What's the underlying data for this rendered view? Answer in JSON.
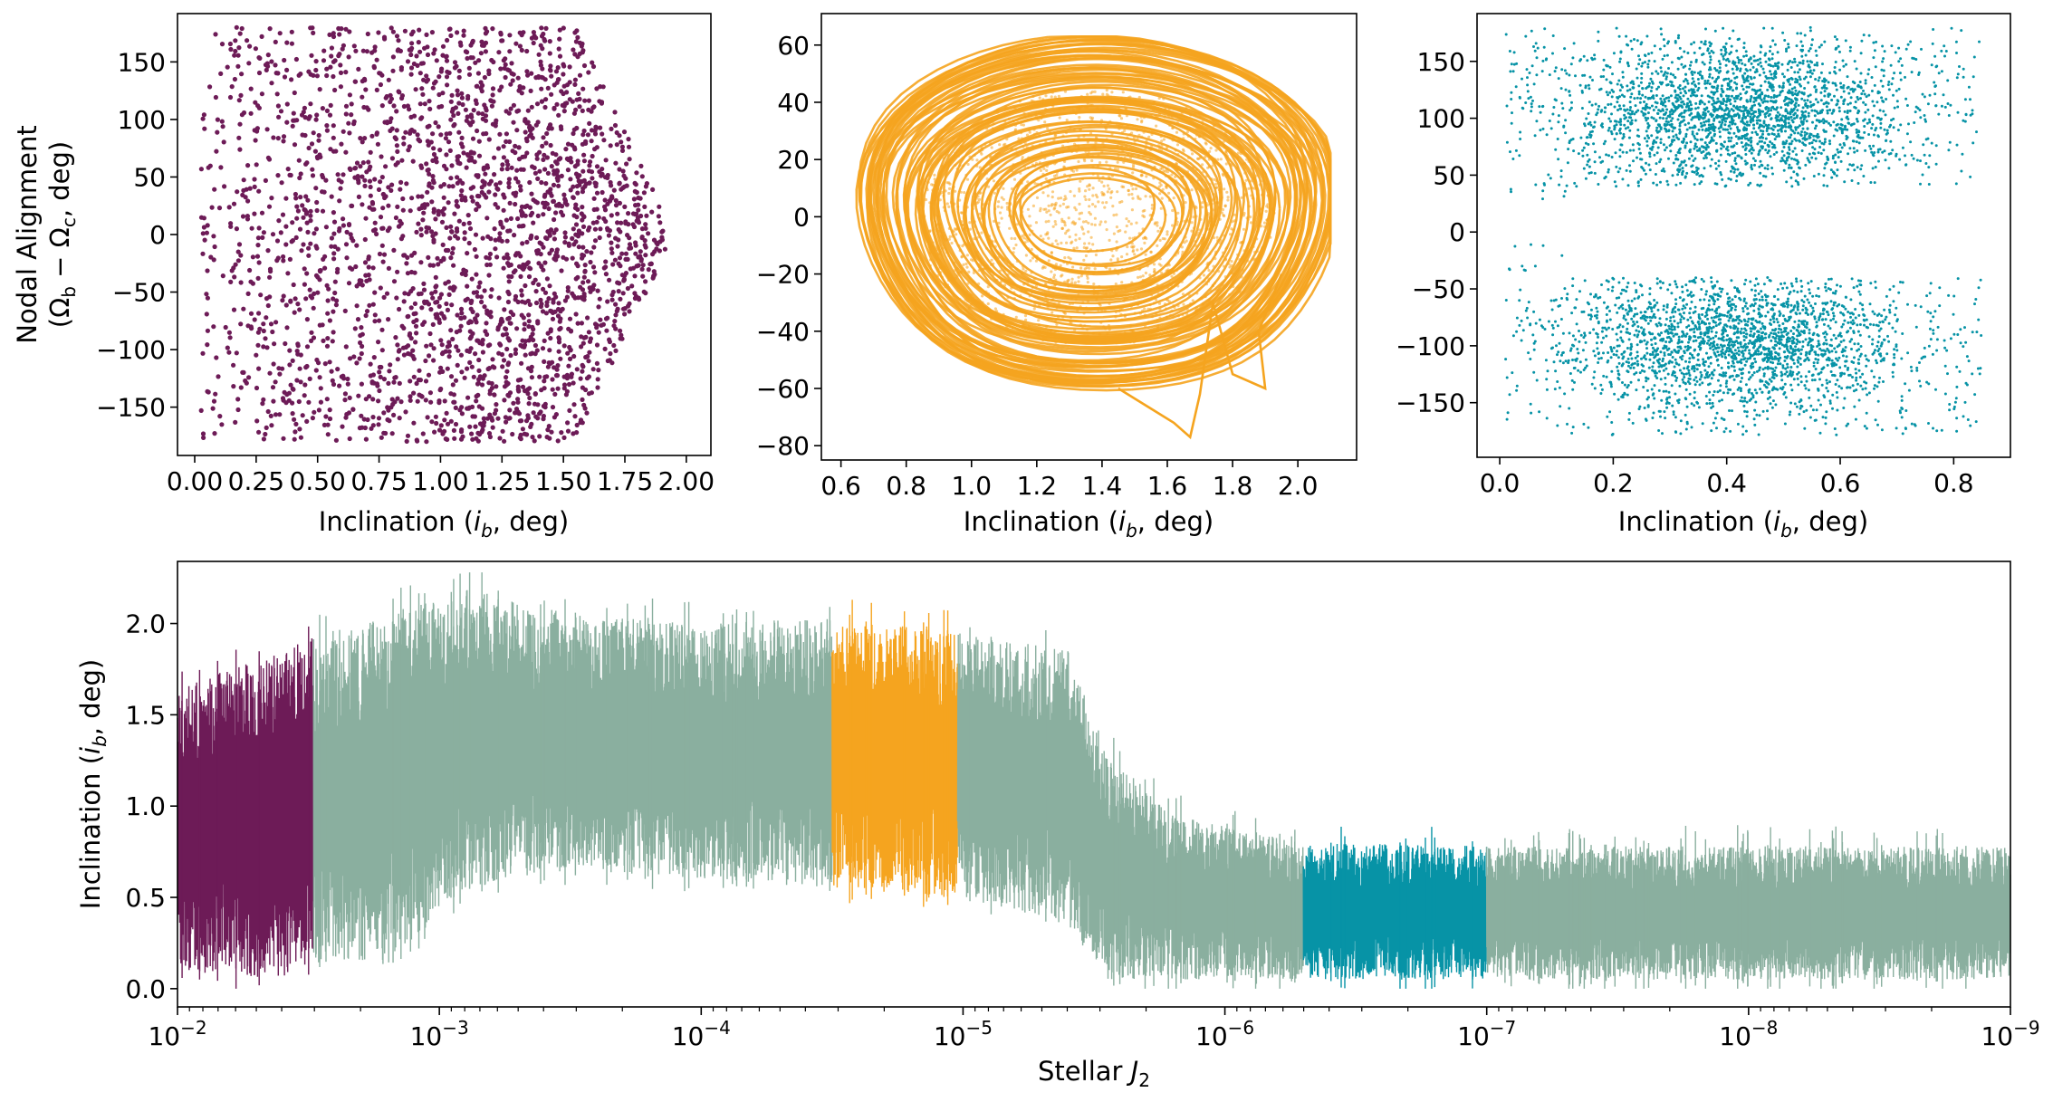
{
  "colors": {
    "purple": "#6d1b57",
    "orange": "#f5a41f",
    "teal": "#0793a6",
    "sage": "#8aaf9f",
    "axis": "#000000"
  },
  "chart_data": [
    {
      "id": "p1",
      "type": "scatter",
      "title": "",
      "xlabel": "Inclination (",
      "xlabel_sym": "i",
      "xlabel_sub": "b",
      "xlabel_end": ", deg)",
      "ylabel_line1": "Nodal Alignment",
      "ylabel_line2_open": "(Ω",
      "ylabel_line2_sub1": "b",
      "ylabel_line2_mid": " − Ω",
      "ylabel_line2_sub2": "c",
      "ylabel_line2_end": ", deg)",
      "xlim": [
        -0.07,
        2.1
      ],
      "ylim": [
        -192,
        192
      ],
      "xticks": [
        0.0,
        0.25,
        0.5,
        0.75,
        1.0,
        1.25,
        1.5,
        1.75,
        2.0
      ],
      "xtick_labels": [
        "0.00",
        "0.25",
        "0.50",
        "0.75",
        "1.00",
        "1.25",
        "1.50",
        "1.75",
        "2.00"
      ],
      "yticks": [
        -150,
        -100,
        -50,
        0,
        50,
        100,
        150
      ],
      "ytick_labels": [
        "−150",
        "−100",
        "−50",
        "0",
        "50",
        "100",
        "150"
      ],
      "series": [
        {
          "name": "purple regime",
          "color": "#6d1b57",
          "marker_size": 2.6,
          "n_points": 2600,
          "x_range": [
            0.02,
            1.98
          ],
          "y_range": [
            -180,
            180
          ]
        }
      ]
    },
    {
      "id": "p2",
      "type": "line",
      "title": "",
      "xlabel": "Inclination (",
      "xlabel_sym": "i",
      "xlabel_sub": "b",
      "xlabel_end": ", deg)",
      "xlim": [
        0.54,
        2.18
      ],
      "ylim": [
        -85,
        71
      ],
      "xticks": [
        0.6,
        0.8,
        1.0,
        1.2,
        1.4,
        1.6,
        1.8,
        2.0
      ],
      "xtick_labels": [
        "0.6",
        "0.8",
        "1.0",
        "1.2",
        "1.4",
        "1.6",
        "1.8",
        "2.0"
      ],
      "yticks": [
        -80,
        -60,
        -40,
        -20,
        0,
        20,
        40,
        60
      ],
      "ytick_labels": [
        "−80",
        "−60",
        "−40",
        "−20",
        "0",
        "20",
        "40",
        "60"
      ],
      "series": [
        {
          "name": "orange regime",
          "color": "#f5a41f",
          "center": [
            1.38,
            0
          ],
          "amplitude_x_range": [
            0.15,
            0.72
          ],
          "amplitude_y_range": [
            10,
            63
          ],
          "x_extent": [
            0.61,
            2.1
          ],
          "y_extent": [
            -77,
            63
          ]
        }
      ]
    },
    {
      "id": "p3",
      "type": "scatter",
      "title": "",
      "xlabel": "Inclination (",
      "xlabel_sym": "i",
      "xlabel_sub": "b",
      "xlabel_end": ", deg)",
      "xlim": [
        -0.04,
        0.9
      ],
      "ylim": [
        -198,
        192
      ],
      "xticks": [
        0.0,
        0.2,
        0.4,
        0.6,
        0.8
      ],
      "xtick_labels": [
        "0.0",
        "0.2",
        "0.4",
        "0.6",
        "0.8"
      ],
      "yticks": [
        -150,
        -100,
        -50,
        0,
        50,
        100,
        150
      ],
      "ytick_labels": [
        "−150",
        "−100",
        "−50",
        "0",
        "50",
        "100",
        "150"
      ],
      "series": [
        {
          "name": "teal regime",
          "color": "#0793a6",
          "marker_size": 1.5,
          "n_points": 5200,
          "clusters_y_center": [
            105,
            -95
          ],
          "x_range": [
            0.0,
            0.85
          ],
          "y_range": [
            -180,
            180
          ]
        }
      ]
    },
    {
      "id": "p4",
      "type": "line",
      "title": "",
      "xlabel": "Stellar ",
      "xlabel_sym": "J",
      "xlabel_sub": "2",
      "xscale": "log",
      "x_reversed": true,
      "xlim": [
        0.01,
        1e-09
      ],
      "ylim": [
        -0.1,
        2.34
      ],
      "ylabel": "Inclination (",
      "ylabel_sym": "i",
      "ylabel_sub": "b",
      "ylabel_end": ", deg)",
      "yticks": [
        0.0,
        0.5,
        1.0,
        1.5,
        2.0
      ],
      "ytick_labels": [
        "0.0",
        "0.5",
        "1.0",
        "1.5",
        "2.0"
      ],
      "xticks_exponents": [
        -2,
        -3,
        -4,
        -5,
        -6,
        -7,
        -8,
        -9
      ],
      "xtick_base": "10",
      "xtick_labels": [
        "−2",
        "−3",
        "−4",
        "−5",
        "−6",
        "−7",
        "−8",
        "−9"
      ],
      "envelope_log10_J2": [
        -2.0,
        -2.4,
        -2.55,
        -2.8,
        -3.1,
        -3.5,
        -4.0,
        -4.5,
        -5.0,
        -5.4,
        -5.55,
        -5.8,
        -6.3,
        -7.0,
        -8.0,
        -9.0
      ],
      "envelope_min": [
        0.1,
        0.05,
        0.15,
        0.12,
        0.55,
        0.65,
        0.6,
        0.55,
        0.5,
        0.35,
        0.05,
        0.05,
        0.05,
        0.05,
        0.05,
        0.05
      ],
      "envelope_max": [
        1.65,
        1.85,
        1.95,
        2.05,
        2.2,
        2.05,
        2.0,
        2.03,
        1.95,
        1.85,
        1.3,
        0.95,
        0.8,
        0.78,
        0.78,
        0.78
      ],
      "highlights": [
        {
          "name": "purple regime",
          "color": "#6d1b57",
          "log10_J2_range": [
            -2.0,
            -2.52
          ]
        },
        {
          "name": "orange regime",
          "color": "#f5a41f",
          "log10_J2_range": [
            -4.5,
            -4.98
          ]
        },
        {
          "name": "teal regime",
          "color": "#0793a6",
          "log10_J2_range": [
            -6.3,
            -7.0
          ]
        }
      ],
      "background_color": "#8aaf9f"
    }
  ]
}
